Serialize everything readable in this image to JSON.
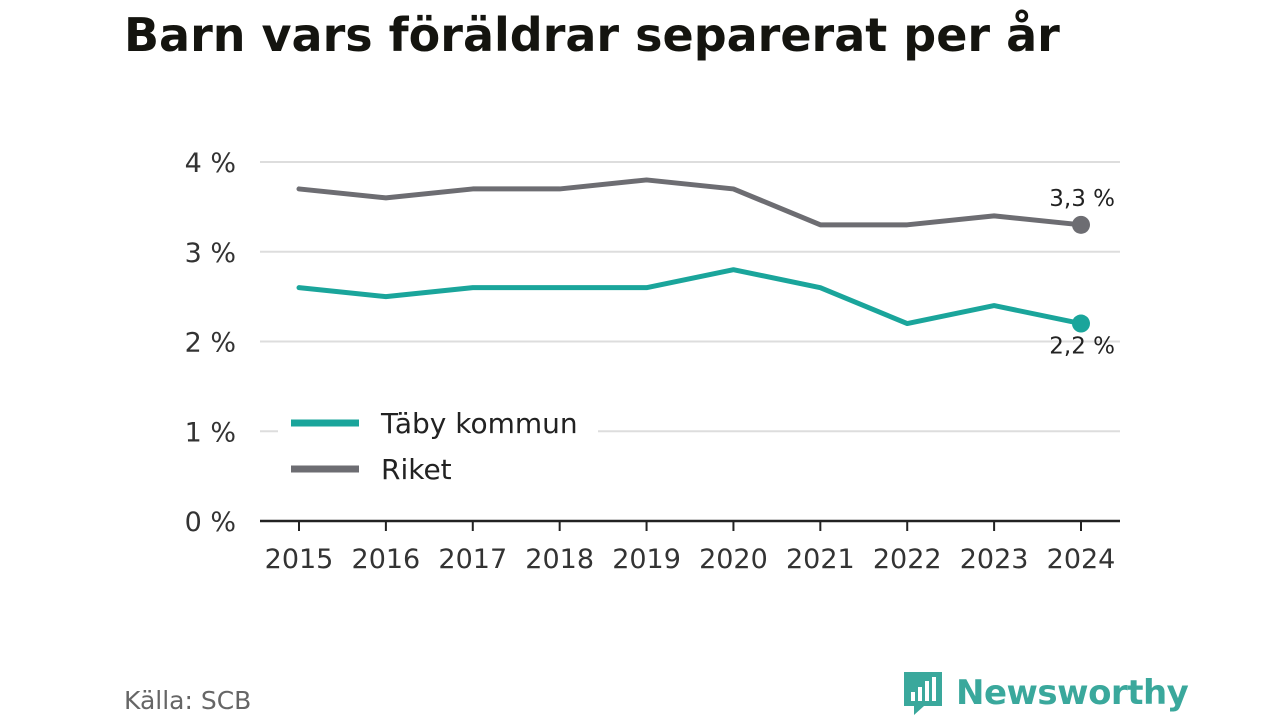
{
  "header": {
    "title": "Barn vars föräldrar separerat per år"
  },
  "footer": {
    "source": "Källa: SCB",
    "brand": "Newsworthy"
  },
  "colors": {
    "taby": "#1aa59b",
    "riket": "#6d6d72",
    "grid": "#dddddd",
    "axis": "#222222",
    "brand": "#3aa89c"
  },
  "chart_data": {
    "type": "line",
    "title": "Barn vars föräldrar separerat per år",
    "xlabel": "",
    "ylabel": "",
    "categories": [
      "2015",
      "2016",
      "2017",
      "2018",
      "2019",
      "2020",
      "2021",
      "2022",
      "2023",
      "2024"
    ],
    "series": [
      {
        "name": "Täby kommun",
        "values": [
          2.6,
          2.5,
          2.6,
          2.6,
          2.6,
          2.8,
          2.6,
          2.2,
          2.4,
          2.2
        ],
        "end_label": "2,2 %"
      },
      {
        "name": "Riket",
        "values": [
          3.7,
          3.6,
          3.7,
          3.7,
          3.8,
          3.7,
          3.3,
          3.3,
          3.4,
          3.3
        ],
        "end_label": "3,3 %"
      }
    ],
    "yticks": [
      0,
      1,
      2,
      3,
      4
    ],
    "ytick_labels": [
      "0 %",
      "1 %",
      "2 %",
      "3 %",
      "4 %"
    ],
    "ylim": [
      0,
      4
    ],
    "grid": true,
    "legend_position": "lower-left"
  }
}
